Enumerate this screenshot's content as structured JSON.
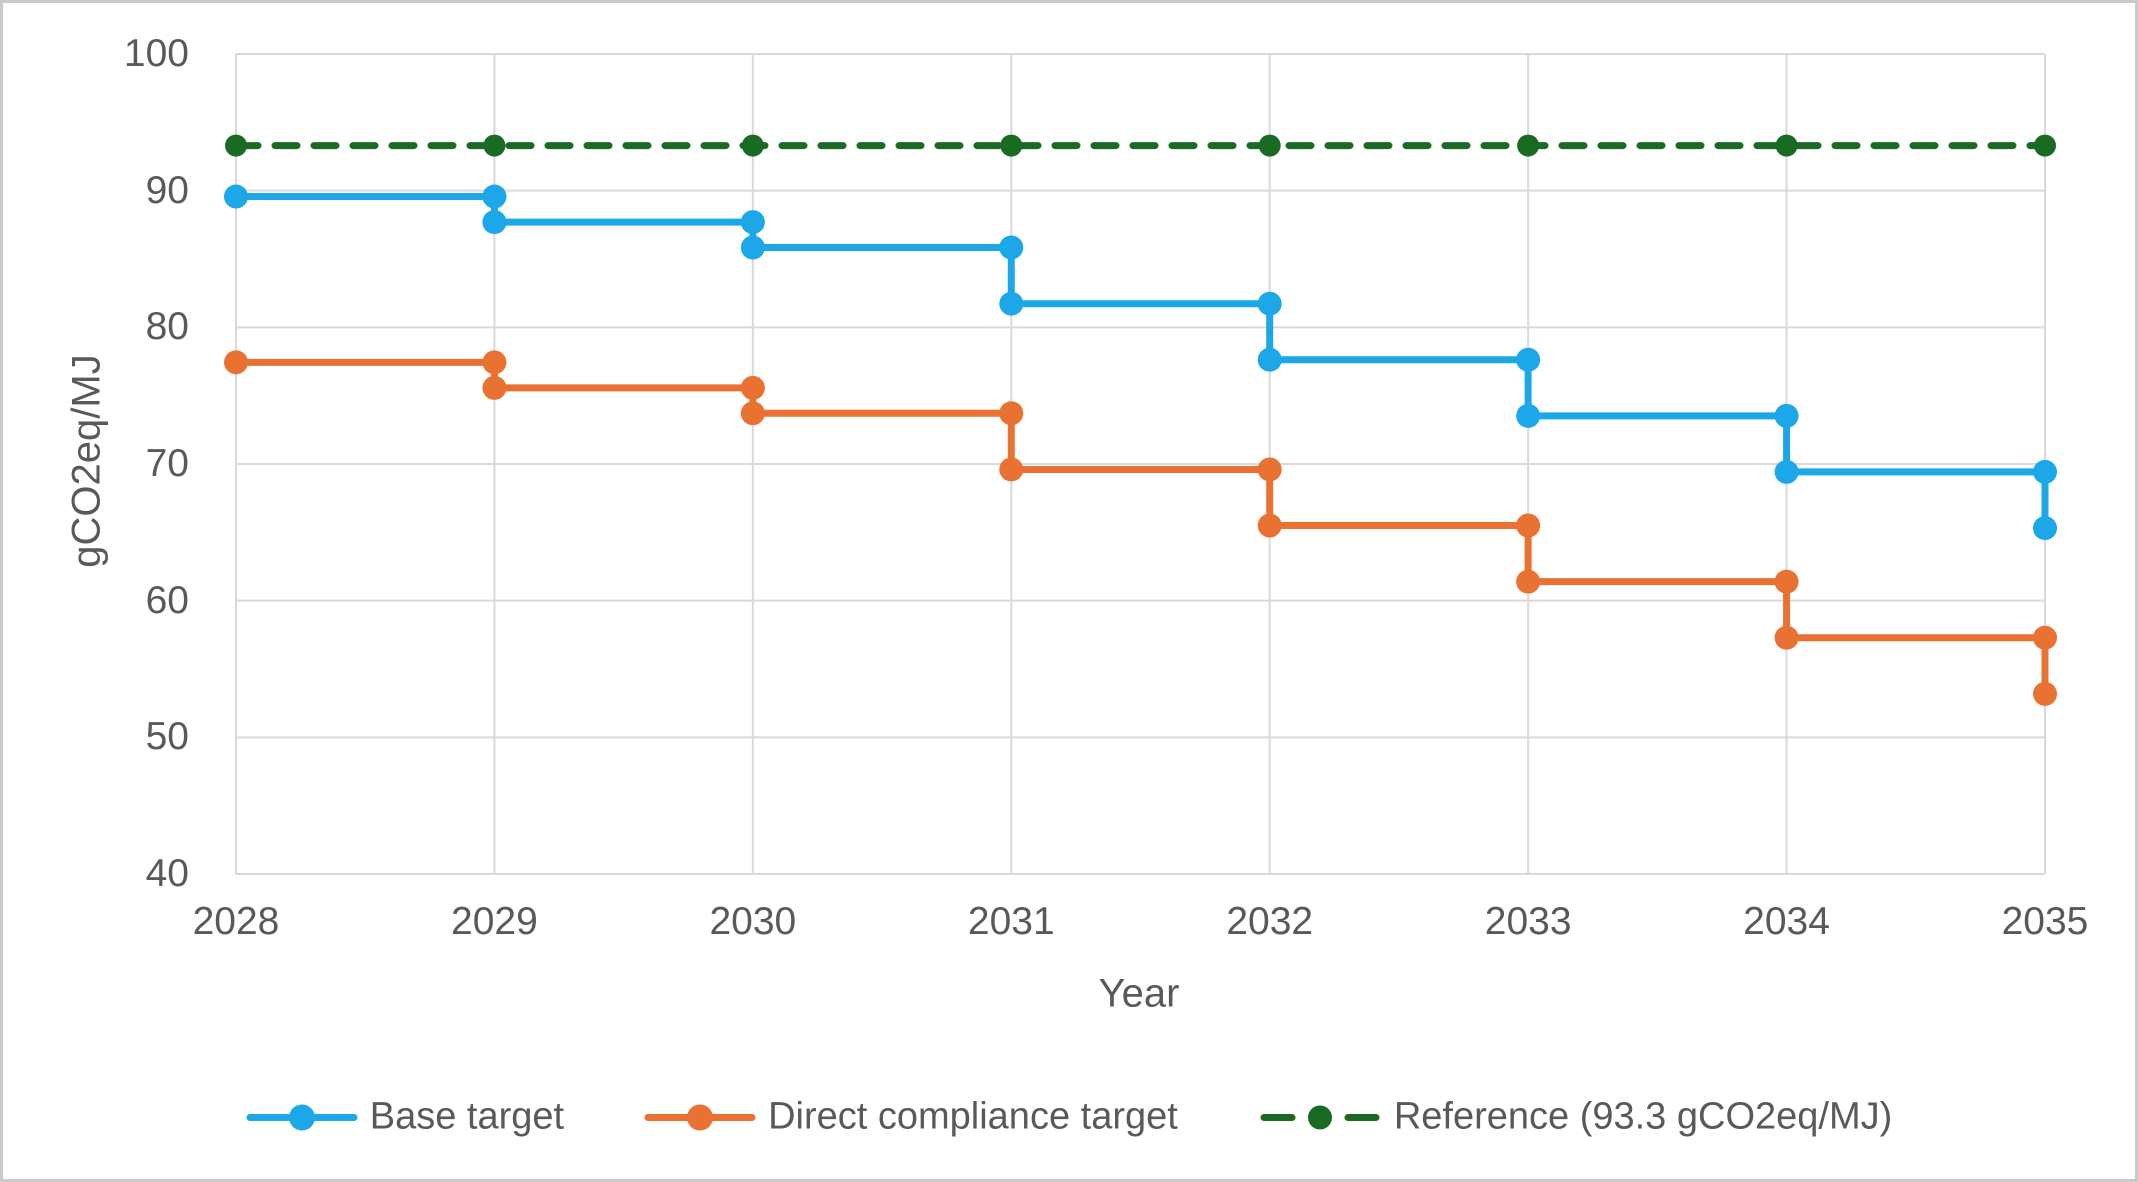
{
  "colors": {
    "background": "#FFFFFF",
    "figure_border": "#C9C9C9",
    "gridline": "#D9D9D9",
    "axis_text": "#595959"
  },
  "chart_data": {
    "type": "line",
    "step_style": "step-after",
    "title": "",
    "xlabel": "Year",
    "ylabel": "gCO2eq/MJ",
    "x": [
      "2028",
      "2029",
      "2030",
      "2031",
      "2032",
      "2033",
      "2034",
      "2035"
    ],
    "ylim": [
      40,
      100
    ],
    "yticks": [
      40,
      50,
      60,
      70,
      80,
      90,
      100
    ],
    "grid": true,
    "legend_position": "bottom",
    "series": [
      {
        "name": "Base target",
        "color": "#1CA7E8",
        "line_style": "solid",
        "marker": "circle",
        "values": [
          89.57,
          87.7,
          85.84,
          81.73,
          77.63,
          73.52,
          69.42,
          65.31
        ]
      },
      {
        "name": "Direct compliance target",
        "color": "#E97132",
        "line_style": "solid",
        "marker": "circle",
        "values": [
          77.44,
          75.57,
          73.71,
          69.6,
          65.5,
          61.39,
          57.29,
          53.18
        ]
      },
      {
        "name": "Reference (93.3 gCO2eq/MJ)",
        "color": "#196B24",
        "line_style": "dashed",
        "marker": "circle",
        "values": [
          93.3,
          93.3,
          93.3,
          93.3,
          93.3,
          93.3,
          93.3,
          93.3
        ]
      }
    ]
  }
}
